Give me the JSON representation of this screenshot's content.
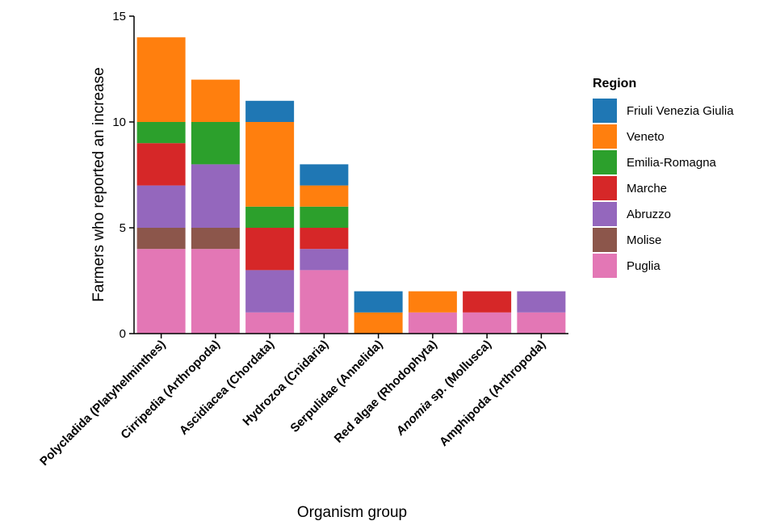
{
  "chart_data": {
    "type": "bar",
    "stacked": true,
    "categories": [
      "Polycladida (Platyhelminthes)",
      "Cirripedia (Arthropoda)",
      "Ascidiacea (Chordata)",
      "Hydrozoa (Cnidaria)",
      "Serpulidae (Annelida)",
      "Red algae (Rhodophyta)",
      "Anomia sp. (Mollusca)",
      "Amphipoda (Arthropoda)"
    ],
    "series": [
      {
        "name": "Puglia",
        "color": "#E377B5",
        "values": [
          4,
          4,
          1,
          3,
          0,
          1,
          1,
          1
        ]
      },
      {
        "name": "Molise",
        "color": "#8C564B",
        "values": [
          1,
          1,
          0,
          0,
          0,
          0,
          0,
          0
        ]
      },
      {
        "name": "Abruzzo",
        "color": "#9467BD",
        "values": [
          2,
          3,
          2,
          1,
          0,
          0,
          0,
          1
        ]
      },
      {
        "name": "Marche",
        "color": "#D62728",
        "values": [
          2,
          0,
          2,
          1,
          0,
          0,
          1,
          0
        ]
      },
      {
        "name": "Emilia-Romagna",
        "color": "#2CA02C",
        "values": [
          1,
          2,
          1,
          1,
          0,
          0,
          0,
          0
        ]
      },
      {
        "name": "Veneto",
        "color": "#FF7F0E",
        "values": [
          4,
          2,
          4,
          1,
          1,
          1,
          0,
          0
        ]
      },
      {
        "name": "Friuli Venezia Giulia",
        "color": "#1F77B4",
        "values": [
          0,
          0,
          1,
          1,
          1,
          0,
          0,
          0
        ]
      }
    ],
    "legend_order": [
      "Friuli Venezia Giulia",
      "Veneto",
      "Emilia-Romagna",
      "Marche",
      "Abruzzo",
      "Molise",
      "Puglia"
    ],
    "legend_title": "Region",
    "legend_position": "right",
    "xlabel": "Organism group",
    "ylabel": "Farmers who reported an increase",
    "ylim": [
      0,
      15
    ],
    "yticks": [
      0,
      5,
      10,
      15
    ],
    "grid": false
  }
}
